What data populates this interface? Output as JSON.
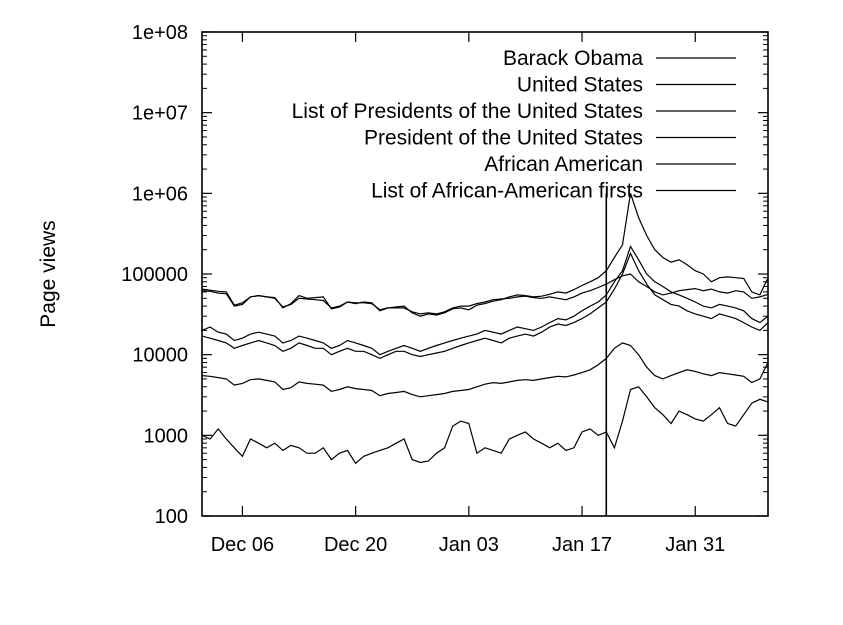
{
  "chart_data": {
    "type": "line",
    "ylabel": "Page views",
    "xlabel": "",
    "y_scale": "log",
    "ylim": [
      100,
      100000000
    ],
    "y_ticks": [
      {
        "value": 100,
        "label": "100"
      },
      {
        "value": 1000,
        "label": "1000"
      },
      {
        "value": 10000,
        "label": "10000"
      },
      {
        "value": 100000,
        "label": "100000"
      },
      {
        "value": 1000000,
        "label": "1e+06"
      },
      {
        "value": 10000000,
        "label": "1e+07"
      },
      {
        "value": 100000000,
        "label": "1e+08"
      }
    ],
    "x_range": [
      "2008-12-01",
      "2009-02-09"
    ],
    "x_ticks": [
      {
        "date": "2008-12-06",
        "label": "Dec 06"
      },
      {
        "date": "2008-12-20",
        "label": "Dec 20"
      },
      {
        "date": "2009-01-03",
        "label": "Jan 03"
      },
      {
        "date": "2009-01-17",
        "label": "Jan 17"
      },
      {
        "date": "2009-01-31",
        "label": "Jan 31"
      }
    ],
    "grid": false,
    "legend_position": "top-right",
    "x": [
      "2008-12-01",
      "2008-12-02",
      "2008-12-03",
      "2008-12-04",
      "2008-12-05",
      "2008-12-06",
      "2008-12-07",
      "2008-12-08",
      "2008-12-09",
      "2008-12-10",
      "2008-12-11",
      "2008-12-12",
      "2008-12-13",
      "2008-12-14",
      "2008-12-15",
      "2008-12-16",
      "2008-12-17",
      "2008-12-18",
      "2008-12-19",
      "2008-12-20",
      "2008-12-21",
      "2008-12-22",
      "2008-12-23",
      "2008-12-24",
      "2008-12-25",
      "2008-12-26",
      "2008-12-27",
      "2008-12-28",
      "2008-12-29",
      "2008-12-30",
      "2008-12-31",
      "2009-01-01",
      "2009-01-02",
      "2009-01-03",
      "2009-01-04",
      "2009-01-05",
      "2009-01-06",
      "2009-01-07",
      "2009-01-08",
      "2009-01-09",
      "2009-01-10",
      "2009-01-11",
      "2009-01-12",
      "2009-01-13",
      "2009-01-14",
      "2009-01-15",
      "2009-01-16",
      "2009-01-17",
      "2009-01-18",
      "2009-01-19",
      "2009-01-20",
      "2009-01-21",
      "2009-01-22",
      "2009-01-23",
      "2009-01-24",
      "2009-01-25",
      "2009-01-26",
      "2009-01-27",
      "2009-01-28",
      "2009-01-29",
      "2009-01-30",
      "2009-01-31",
      "2009-02-01",
      "2009-02-02",
      "2009-02-03",
      "2009-02-04",
      "2009-02-05",
      "2009-02-06",
      "2009-02-07",
      "2009-02-08",
      "2009-02-09"
    ],
    "series": [
      {
        "name": "Barack Obama",
        "values": [
          62000,
          61000,
          58000,
          57000,
          40000,
          42000,
          52000,
          54000,
          52000,
          51000,
          38000,
          43000,
          54000,
          50000,
          51000,
          52000,
          37000,
          39000,
          45000,
          43000,
          45000,
          44000,
          35000,
          38000,
          39000,
          40000,
          33000,
          30000,
          32000,
          31000,
          33000,
          37000,
          38000,
          36000,
          41000,
          43000,
          46000,
          48000,
          52000,
          55000,
          54000,
          52000,
          53000,
          56000,
          60000,
          58000,
          64000,
          72000,
          80000,
          90000,
          110000,
          160000,
          230000,
          1000000,
          500000,
          300000,
          200000,
          160000,
          140000,
          150000,
          130000,
          110000,
          100000,
          80000,
          90000,
          92000,
          90000,
          88000,
          60000,
          55000,
          90000
        ]
      },
      {
        "name": "United States",
        "values": [
          65000,
          63000,
          61000,
          60000,
          41000,
          44000,
          52000,
          54000,
          52000,
          50000,
          39000,
          42000,
          50000,
          49000,
          48000,
          47000,
          38000,
          40000,
          45000,
          44000,
          44000,
          43000,
          36000,
          38000,
          38000,
          38000,
          34000,
          32000,
          33000,
          32000,
          34000,
          38000,
          40000,
          40000,
          43000,
          45000,
          48000,
          49000,
          50000,
          52000,
          53000,
          51000,
          50000,
          52000,
          50000,
          48000,
          52000,
          58000,
          62000,
          68000,
          75000,
          85000,
          95000,
          100000,
          80000,
          70000,
          60000,
          55000,
          58000,
          62000,
          64000,
          66000,
          62000,
          65000,
          60000,
          58000,
          62000,
          60000,
          50000,
          52000,
          56000
        ]
      },
      {
        "name": "List of Presidents of the United States",
        "values": [
          20000,
          22000,
          19000,
          18000,
          15000,
          16000,
          18000,
          19000,
          18000,
          17000,
          14000,
          15000,
          17000,
          16000,
          15000,
          14000,
          12000,
          13000,
          15000,
          14000,
          13000,
          12000,
          10000,
          11000,
          12000,
          13000,
          12000,
          11000,
          12000,
          13000,
          14000,
          15000,
          16000,
          17000,
          18000,
          20000,
          19000,
          18000,
          20000,
          22000,
          21000,
          20000,
          22000,
          25000,
          28000,
          27000,
          30000,
          35000,
          40000,
          45000,
          55000,
          80000,
          110000,
          220000,
          150000,
          100000,
          80000,
          70000,
          60000,
          55000,
          50000,
          45000,
          40000,
          38000,
          42000,
          40000,
          38000,
          35000,
          28000,
          25000,
          30000
        ]
      },
      {
        "name": "President of the United States",
        "values": [
          17000,
          16000,
          15000,
          14000,
          12000,
          13000,
          14000,
          15000,
          14000,
          13000,
          11000,
          12000,
          14000,
          13000,
          12000,
          12000,
          10000,
          11000,
          12000,
          11000,
          11000,
          10000,
          9000,
          10000,
          11000,
          11000,
          10000,
          9500,
          10000,
          10500,
          11000,
          12000,
          13000,
          14000,
          15000,
          16000,
          15000,
          14000,
          16000,
          17000,
          18000,
          17000,
          19000,
          22000,
          24000,
          23000,
          25000,
          28000,
          32000,
          38000,
          45000,
          65000,
          100000,
          180000,
          110000,
          75000,
          55000,
          48000,
          42000,
          40000,
          35000,
          32000,
          30000,
          28000,
          32000,
          30000,
          28000,
          25000,
          22000,
          20000,
          25000
        ]
      },
      {
        "name": "African American",
        "values": [
          5500,
          5400,
          5200,
          5000,
          4200,
          4400,
          4900,
          5000,
          4800,
          4600,
          3700,
          3900,
          4600,
          4400,
          4300,
          4200,
          3500,
          3700,
          4000,
          3800,
          3700,
          3600,
          3100,
          3300,
          3400,
          3500,
          3200,
          3000,
          3100,
          3200,
          3300,
          3500,
          3600,
          3700,
          4000,
          4300,
          4500,
          4400,
          4600,
          4800,
          4900,
          4800,
          5000,
          5200,
          5400,
          5300,
          5600,
          6000,
          6500,
          7500,
          9000,
          12000,
          14000,
          13000,
          10000,
          7000,
          5500,
          5000,
          5500,
          6000,
          6500,
          6200,
          5800,
          5500,
          6000,
          5800,
          5600,
          5400,
          4500,
          5000,
          8000
        ]
      },
      {
        "name": "List of African-American firsts",
        "values": [
          1000,
          900,
          1200,
          900,
          700,
          550,
          900,
          800,
          700,
          800,
          650,
          750,
          700,
          600,
          600,
          700,
          500,
          600,
          650,
          450,
          550,
          600,
          650,
          700,
          800,
          900,
          500,
          460,
          480,
          600,
          700,
          1300,
          1500,
          1400,
          600,
          700,
          650,
          600,
          900,
          1000,
          1100,
          900,
          800,
          700,
          800,
          650,
          700,
          1100,
          1200,
          1000,
          1100,
          700,
          1500,
          3700,
          4000,
          3000,
          2200,
          1800,
          1400,
          2000,
          1800,
          1600,
          1500,
          1800,
          2200,
          1400,
          1300,
          1800,
          2500,
          2800,
          2600
        ]
      }
    ]
  }
}
